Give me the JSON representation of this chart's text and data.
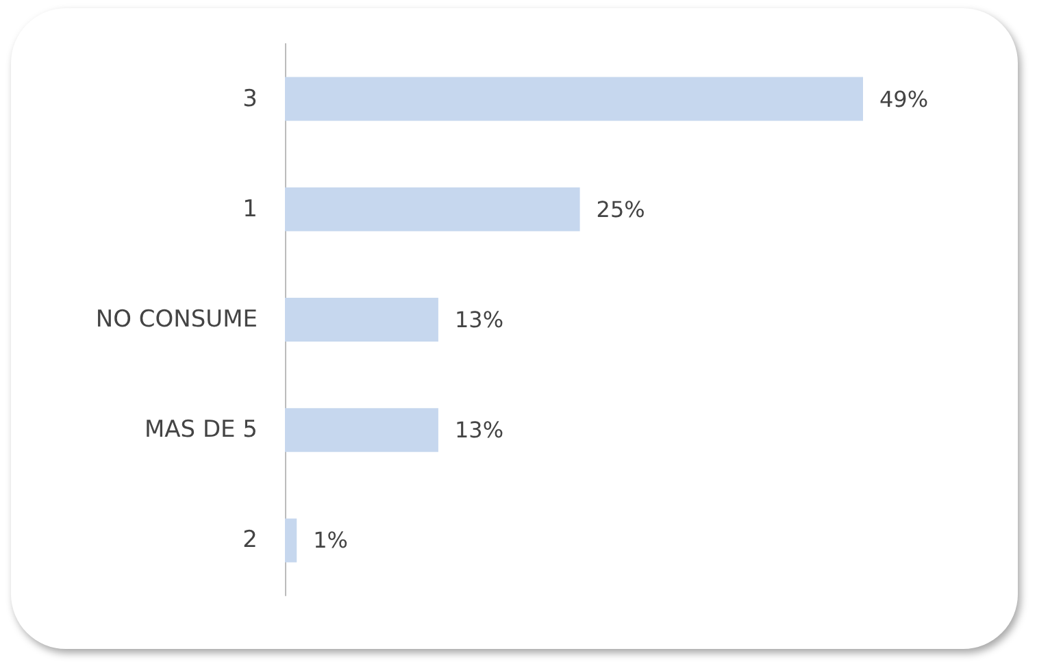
{
  "chart_data": {
    "type": "bar",
    "orientation": "horizontal",
    "categories": [
      "3",
      "1",
      "NO CONSUME",
      "MAS DE 5",
      "2"
    ],
    "values": [
      49,
      25,
      13,
      13,
      1
    ],
    "value_labels": [
      "49%",
      "25%",
      "13%",
      "13%",
      "1%"
    ],
    "color": "#c6d7ee"
  }
}
